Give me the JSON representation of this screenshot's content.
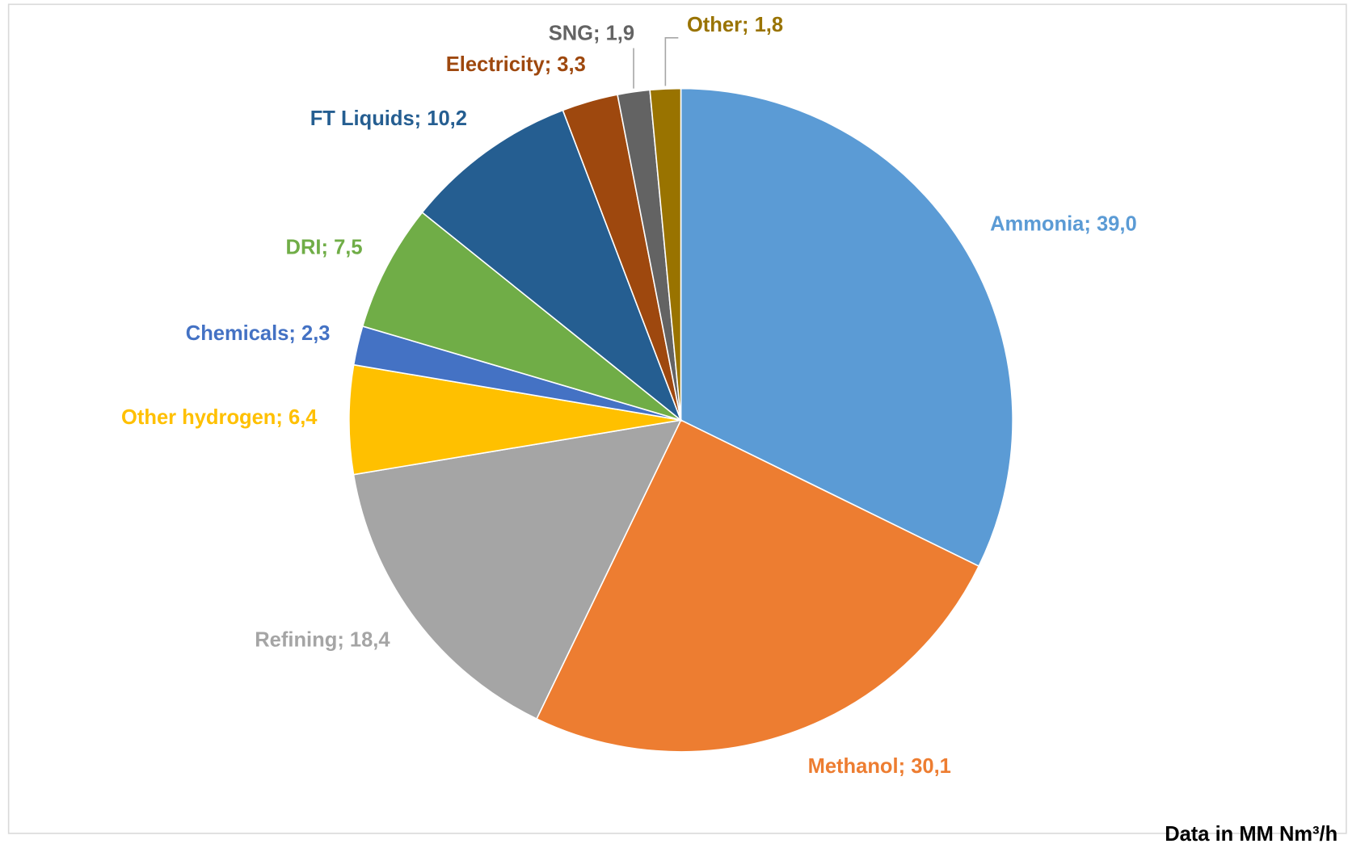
{
  "chart_data": {
    "type": "pie",
    "categories": [
      "Ammonia",
      "Methanol",
      "Refining",
      "Other hydrogen",
      "Chemicals",
      "DRI",
      "FT Liquids",
      "Electricity",
      "SNG",
      "Other"
    ],
    "values": [
      39.0,
      30.1,
      18.4,
      6.4,
      2.3,
      7.5,
      10.2,
      3.3,
      1.9,
      1.8
    ],
    "value_labels": [
      "39,0",
      "30,1",
      "18,4",
      "6,4",
      "2,3",
      "7,5",
      "10,2",
      "3,3",
      "1,9",
      "1,8"
    ],
    "label_separator": "; ",
    "colors": [
      "#5b9bd5",
      "#ed7d31",
      "#a5a5a5",
      "#ffc000",
      "#4472c4",
      "#70ad47",
      "#255e91",
      "#9e480e",
      "#636363",
      "#997300"
    ],
    "note": "Data in MM Nm³/h"
  }
}
